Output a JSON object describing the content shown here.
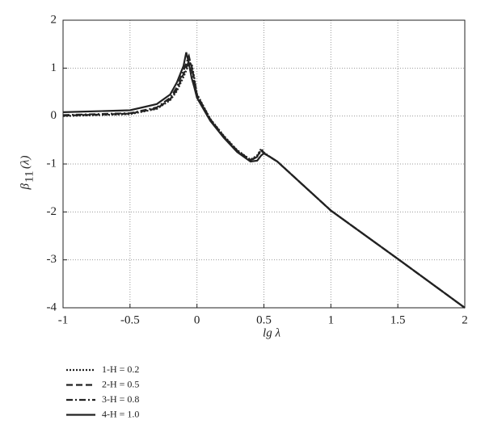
{
  "chart_data": {
    "type": "line",
    "xlabel": "lg λ",
    "ylabel": {
      "base": "β",
      "sub": "11",
      "rest": "(λ)"
    },
    "x": [
      -1,
      -0.5,
      -0.3,
      -0.2,
      -0.15,
      -0.1,
      -0.08,
      -0.06,
      -0.04,
      -0.02,
      0,
      0.1,
      0.2,
      0.3,
      0.4,
      0.45,
      0.48,
      0.5,
      0.55,
      0.6,
      1,
      1.5,
      2
    ],
    "series": [
      {
        "name": "1-H = 0.2",
        "color": "#222222",
        "dash": "dotted",
        "values": [
          0.0,
          0.04,
          0.15,
          0.33,
          0.52,
          0.82,
          0.95,
          1.08,
          1.1,
          0.8,
          0.46,
          -0.06,
          -0.41,
          -0.71,
          -0.91,
          -0.82,
          -0.68,
          -0.76,
          -0.86,
          -0.95,
          -1.97,
          -2.98,
          -4.0
        ]
      },
      {
        "name": "2-H = 0.5",
        "color": "#222222",
        "dash": "dashed",
        "values": [
          0.01,
          0.05,
          0.16,
          0.35,
          0.55,
          0.88,
          1.0,
          1.15,
          1.05,
          0.75,
          0.44,
          -0.07,
          -0.42,
          -0.72,
          -0.92,
          -0.84,
          -0.7,
          -0.77,
          -0.86,
          -0.95,
          -1.97,
          -2.98,
          -4.0
        ]
      },
      {
        "name": "3-H = 0.8",
        "color": "#222222",
        "dash": "dashdot",
        "values": [
          0.02,
          0.06,
          0.18,
          0.38,
          0.6,
          0.95,
          1.1,
          1.25,
          1.0,
          0.7,
          0.42,
          -0.08,
          -0.43,
          -0.73,
          -0.93,
          -0.85,
          -0.72,
          -0.78,
          -0.86,
          -0.95,
          -1.97,
          -2.98,
          -4.0
        ]
      },
      {
        "name": "4-H = 1.0",
        "color": "#222222",
        "dash": "solid",
        "values": [
          0.08,
          0.12,
          0.25,
          0.45,
          0.7,
          1.05,
          1.33,
          1.1,
          0.8,
          0.6,
          0.38,
          -0.1,
          -0.45,
          -0.75,
          -0.95,
          -0.93,
          -0.82,
          -0.78,
          -0.86,
          -0.95,
          -1.97,
          -2.98,
          -4.0
        ]
      }
    ],
    "xlim": [
      -1,
      2
    ],
    "xticks": [
      -1,
      -0.5,
      0,
      0.5,
      1,
      1.5,
      2
    ],
    "ylim": [
      -4,
      2
    ],
    "yticks": [
      -4,
      -3,
      -2,
      -1,
      0,
      1,
      2
    ],
    "grid": true
  }
}
